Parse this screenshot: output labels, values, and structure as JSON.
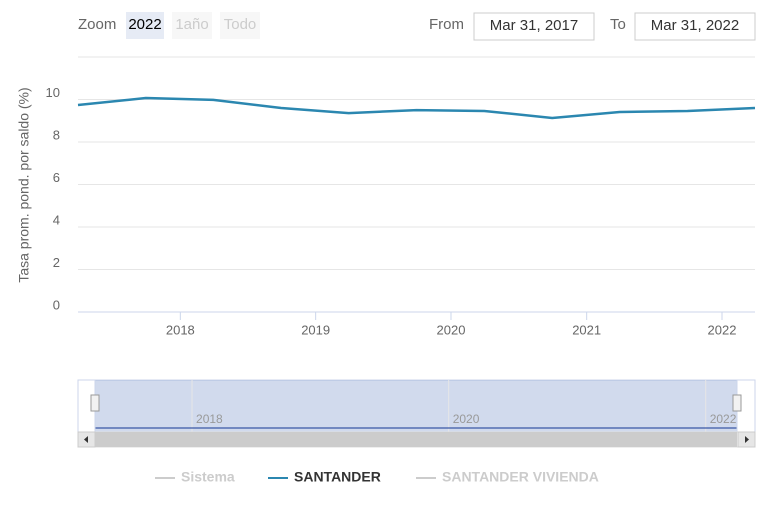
{
  "chart_data": {
    "type": "line",
    "range_selector": {
      "zoom_label": "Zoom",
      "buttons": [
        "2022",
        "1año",
        "Todo"
      ],
      "active": 0,
      "from_label": "From",
      "from": "Mar 31, 2017",
      "to_label": "To",
      "to": "Mar 31, 2022"
    },
    "y_axis_label": "Tasa prom. pond. por saldo (%)",
    "x": [
      "2017-03-31",
      "2017-09-30",
      "2018-03-31",
      "2018-09-30",
      "2019-03-31",
      "2019-09-30",
      "2020-03-31",
      "2020-09-30",
      "2021-03-31",
      "2021-09-30",
      "2022-03-31"
    ],
    "xlim": [
      "2017-03-31",
      "2022-03-31"
    ],
    "xticks": [
      {
        "value": "2018-01-01",
        "label": "2018"
      },
      {
        "value": "2019-01-01",
        "label": "2019"
      },
      {
        "value": "2020-01-01",
        "label": "2020"
      },
      {
        "value": "2021-01-01",
        "label": "2021"
      },
      {
        "value": "2022-01-01",
        "label": "2022"
      }
    ],
    "navigator_xticks": [
      {
        "value": "2018-01-01",
        "label": "2018"
      },
      {
        "value": "2020-01-01",
        "label": "2020"
      },
      {
        "value": "2022-01-01",
        "label": "2022"
      }
    ],
    "ylim": [
      0,
      12
    ],
    "yticks": [
      0,
      2,
      4,
      6,
      8,
      10
    ],
    "grid": true,
    "series": [
      {
        "name": "Sistema",
        "color": "#cccccc",
        "visible": false
      },
      {
        "name": "SANTANDER",
        "color": "#2b87b0",
        "visible": true,
        "values": [
          9.74,
          10.07,
          9.98,
          9.6,
          9.36,
          9.5,
          9.46,
          9.13,
          9.41,
          9.46,
          9.6
        ]
      },
      {
        "name": "SANTANDER VIVIENDA",
        "color": "#cccccc",
        "visible": false
      }
    ]
  }
}
